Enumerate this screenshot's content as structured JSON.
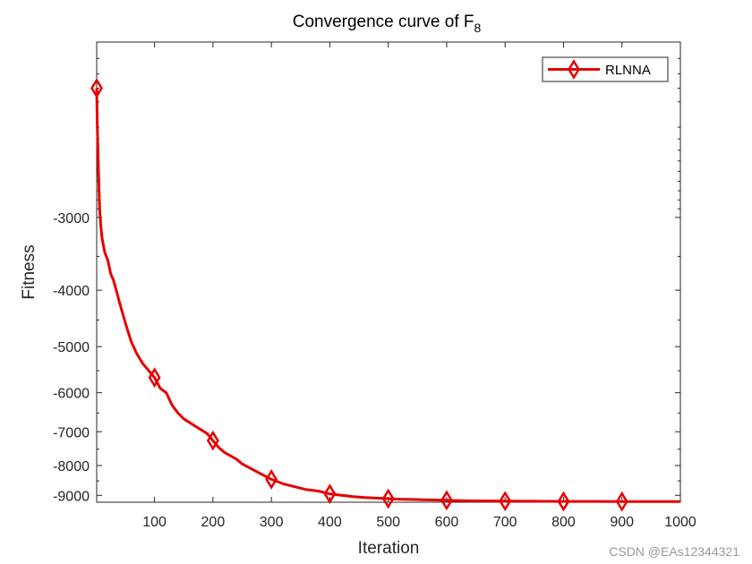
{
  "chart_data": {
    "type": "line",
    "title": "Convergence curve of F",
    "title_subscript": "8",
    "xlabel": "Iteration",
    "ylabel": "Fitness",
    "xlim": [
      1,
      1000
    ],
    "ylim": [
      -9250,
      -1500
    ],
    "yscale": "symlog",
    "xticks": [
      100,
      200,
      300,
      400,
      500,
      600,
      700,
      800,
      900,
      1000
    ],
    "yticks": [
      -9000,
      -8000,
      -7000,
      -6000,
      -5000,
      -4000,
      -3000
    ],
    "grid": false,
    "legend_position": "top-right",
    "series": [
      {
        "name": "RLNNA",
        "color": "#e60000",
        "marker": "diamond",
        "marker_x": [
          1,
          100,
          200,
          300,
          400,
          500,
          600,
          700,
          800,
          900
        ],
        "x": [
          1,
          2,
          4,
          6,
          8,
          10,
          15,
          20,
          25,
          30,
          40,
          50,
          60,
          70,
          80,
          90,
          100,
          110,
          120,
          130,
          140,
          150,
          160,
          170,
          180,
          190,
          200,
          210,
          220,
          230,
          240,
          250,
          260,
          270,
          280,
          290,
          300,
          320,
          340,
          360,
          380,
          400,
          420,
          440,
          460,
          480,
          500,
          520,
          540,
          560,
          580,
          600,
          650,
          700,
          750,
          800,
          850,
          900,
          950,
          1000
        ],
        "y": [
          -1800,
          -2100,
          -2500,
          -2900,
          -3100,
          -3250,
          -3450,
          -3550,
          -3750,
          -3850,
          -4200,
          -4550,
          -4900,
          -5150,
          -5350,
          -5500,
          -5650,
          -5900,
          -6000,
          -6300,
          -6500,
          -6650,
          -6750,
          -6850,
          -6950,
          -7050,
          -7250,
          -7450,
          -7600,
          -7700,
          -7800,
          -7950,
          -8050,
          -8150,
          -8250,
          -8350,
          -8450,
          -8600,
          -8700,
          -8800,
          -8850,
          -8950,
          -9000,
          -9050,
          -9080,
          -9100,
          -9120,
          -9140,
          -9150,
          -9160,
          -9170,
          -9180,
          -9200,
          -9210,
          -9215,
          -9220,
          -9222,
          -9225,
          -9225,
          -9225
        ]
      }
    ]
  },
  "watermark": "CSDN @EAs12344321"
}
